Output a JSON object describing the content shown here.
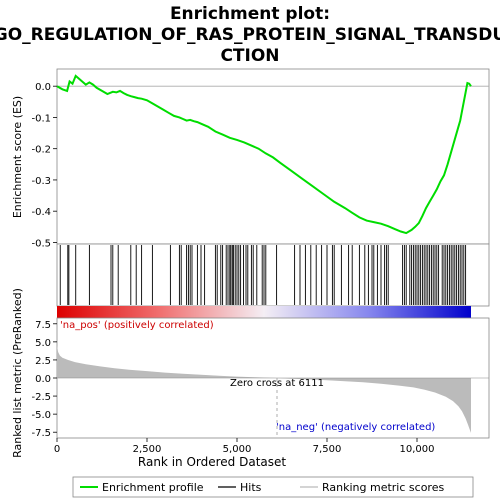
{
  "chart_data": {
    "type": "line",
    "title_line1": "Enrichment plot:",
    "title_line2": "GO_REGULATION_OF_RAS_PROTEIN_SIGNAL_TRANSDU",
    "title_line3": "CTION",
    "top_panel": {
      "ylabel": "Enrichment score (ES)",
      "yticks": [
        "0.0",
        "-0.1",
        "-0.2",
        "-0.3",
        "-0.4",
        "-0.5"
      ],
      "ytick_values": [
        0.0,
        -0.1,
        -0.2,
        -0.3,
        -0.4,
        -0.5
      ],
      "ylim": [
        -0.505,
        0.055
      ],
      "series_name": "Enrichment profile",
      "line_color": "#00dd00",
      "es_curve": {
        "x": [
          0,
          150,
          280,
          350,
          430,
          520,
          600,
          700,
          800,
          900,
          1000,
          1100,
          1250,
          1400,
          1550,
          1650,
          1750,
          1850,
          1950,
          2050,
          2150,
          2250,
          2350,
          2500,
          2650,
          2800,
          2950,
          3100,
          3250,
          3400,
          3500,
          3600,
          3700,
          3800,
          3900,
          4000,
          4200,
          4400,
          4600,
          4800,
          5000,
          5200,
          5400,
          5600,
          5800,
          6000,
          6200,
          6500,
          6800,
          7100,
          7400,
          7700,
          8000,
          8200,
          8400,
          8600,
          8800,
          9000,
          9200,
          9400,
          9550,
          9700,
          9850,
          9950,
          10050,
          10150,
          10250,
          10350,
          10450,
          10550,
          10650,
          10750,
          10850,
          10950,
          11050,
          11150,
          11200,
          11250,
          11300,
          11350,
          11400,
          11450,
          11500
        ],
        "y": [
          0.0,
          -0.01,
          -0.015,
          0.015,
          0.008,
          0.033,
          0.025,
          0.015,
          0.005,
          0.012,
          0.005,
          -0.005,
          -0.015,
          -0.025,
          -0.018,
          -0.02,
          -0.015,
          -0.022,
          -0.028,
          -0.032,
          -0.035,
          -0.038,
          -0.04,
          -0.045,
          -0.055,
          -0.065,
          -0.075,
          -0.085,
          -0.095,
          -0.1,
          -0.105,
          -0.11,
          -0.108,
          -0.112,
          -0.115,
          -0.12,
          -0.13,
          -0.145,
          -0.155,
          -0.165,
          -0.172,
          -0.18,
          -0.19,
          -0.2,
          -0.215,
          -0.228,
          -0.245,
          -0.27,
          -0.295,
          -0.32,
          -0.345,
          -0.37,
          -0.39,
          -0.405,
          -0.42,
          -0.43,
          -0.435,
          -0.44,
          -0.448,
          -0.458,
          -0.465,
          -0.47,
          -0.46,
          -0.45,
          -0.438,
          -0.415,
          -0.39,
          -0.37,
          -0.35,
          -0.33,
          -0.305,
          -0.285,
          -0.25,
          -0.21,
          -0.17,
          -0.13,
          -0.11,
          -0.08,
          -0.05,
          -0.02,
          0.01,
          0.008,
          0.0
        ]
      }
    },
    "hits": {
      "name": "Hits",
      "positions": [
        90,
        300,
        330,
        520,
        900,
        1500,
        1550,
        1700,
        2050,
        2200,
        2350,
        2650,
        3150,
        3400,
        3450,
        3600,
        3650,
        3700,
        3750,
        3900,
        4000,
        4100,
        4400,
        4450,
        4550,
        4600,
        4700,
        4750,
        4800,
        4830,
        4870,
        4900,
        4950,
        5000,
        5050,
        5100,
        5180,
        5250,
        5300,
        5400,
        5450,
        5550,
        5700,
        5750,
        5800,
        6100,
        6600,
        6750,
        6900,
        7050,
        7200,
        7350,
        7500,
        7650,
        7700,
        7900,
        8100,
        8200,
        8400,
        8550,
        8650,
        8750,
        8800,
        8900,
        9000,
        9100,
        9150,
        9200,
        9600,
        9650,
        9700,
        9800,
        9850,
        9900,
        9950,
        10000,
        10050,
        10100,
        10150,
        10200,
        10250,
        10300,
        10350,
        10400,
        10450,
        10500,
        10550,
        10600,
        10700,
        10750,
        10800,
        10850,
        10900,
        10950,
        11000,
        11050,
        11100,
        11150,
        11200,
        11250,
        11300,
        11350
      ]
    },
    "bottom_panel": {
      "ylabel": "Ranked list metric (PreRanked)",
      "xlabel": "Rank in Ordered Dataset",
      "yticks": [
        "7.5",
        "5.0",
        "2.5",
        "0.0",
        "-2.5",
        "-5.0",
        "-7.5"
      ],
      "ytick_values": [
        7.5,
        5.0,
        2.5,
        0.0,
        -2.5,
        -5.0,
        -7.5
      ],
      "ylim": [
        -8.3,
        8.3
      ],
      "xticks": [
        "0",
        "2,500",
        "5,000",
        "7,500",
        "10,000"
      ],
      "xtick_values": [
        0,
        2500,
        5000,
        7500,
        10000
      ],
      "xlim": [
        0,
        11500
      ],
      "fill_color": "#bbbbbb",
      "metric_curve": {
        "x": [
          0,
          30,
          80,
          150,
          300,
          500,
          800,
          1200,
          1600,
          2000,
          2500,
          3000,
          3500,
          4000,
          4500,
          5000,
          5500,
          6000,
          6111,
          6500,
          7000,
          7500,
          8000,
          8500,
          9000,
          9500,
          9900,
          10200,
          10500,
          10800,
          11000,
          11150,
          11250,
          11350,
          11420,
          11470,
          11500
        ],
        "y": [
          4.5,
          3.6,
          3.1,
          2.8,
          2.5,
          2.2,
          1.9,
          1.6,
          1.35,
          1.15,
          0.95,
          0.75,
          0.6,
          0.45,
          0.32,
          0.2,
          0.1,
          0.02,
          0.0,
          -0.1,
          -0.2,
          -0.32,
          -0.45,
          -0.6,
          -0.8,
          -1.05,
          -1.3,
          -1.6,
          -2.0,
          -2.6,
          -3.2,
          -3.9,
          -4.6,
          -5.6,
          -6.5,
          -7.2,
          -7.6
        ]
      },
      "pos_label": "'na_pos' (positively correlated)",
      "neg_label": "'na_neg' (negatively correlated)",
      "pos_label_color": "#cc0000",
      "neg_label_color": "#0000cc",
      "zero_cross_label": "Zero cross at 6111",
      "zero_cross": 6111
    },
    "legend": {
      "items": [
        {
          "label": "Enrichment profile",
          "color": "#00dd00"
        },
        {
          "label": "Hits",
          "color": "#000000"
        },
        {
          "label": "Ranking metric scores",
          "color": "#bbbbbb"
        }
      ]
    }
  }
}
